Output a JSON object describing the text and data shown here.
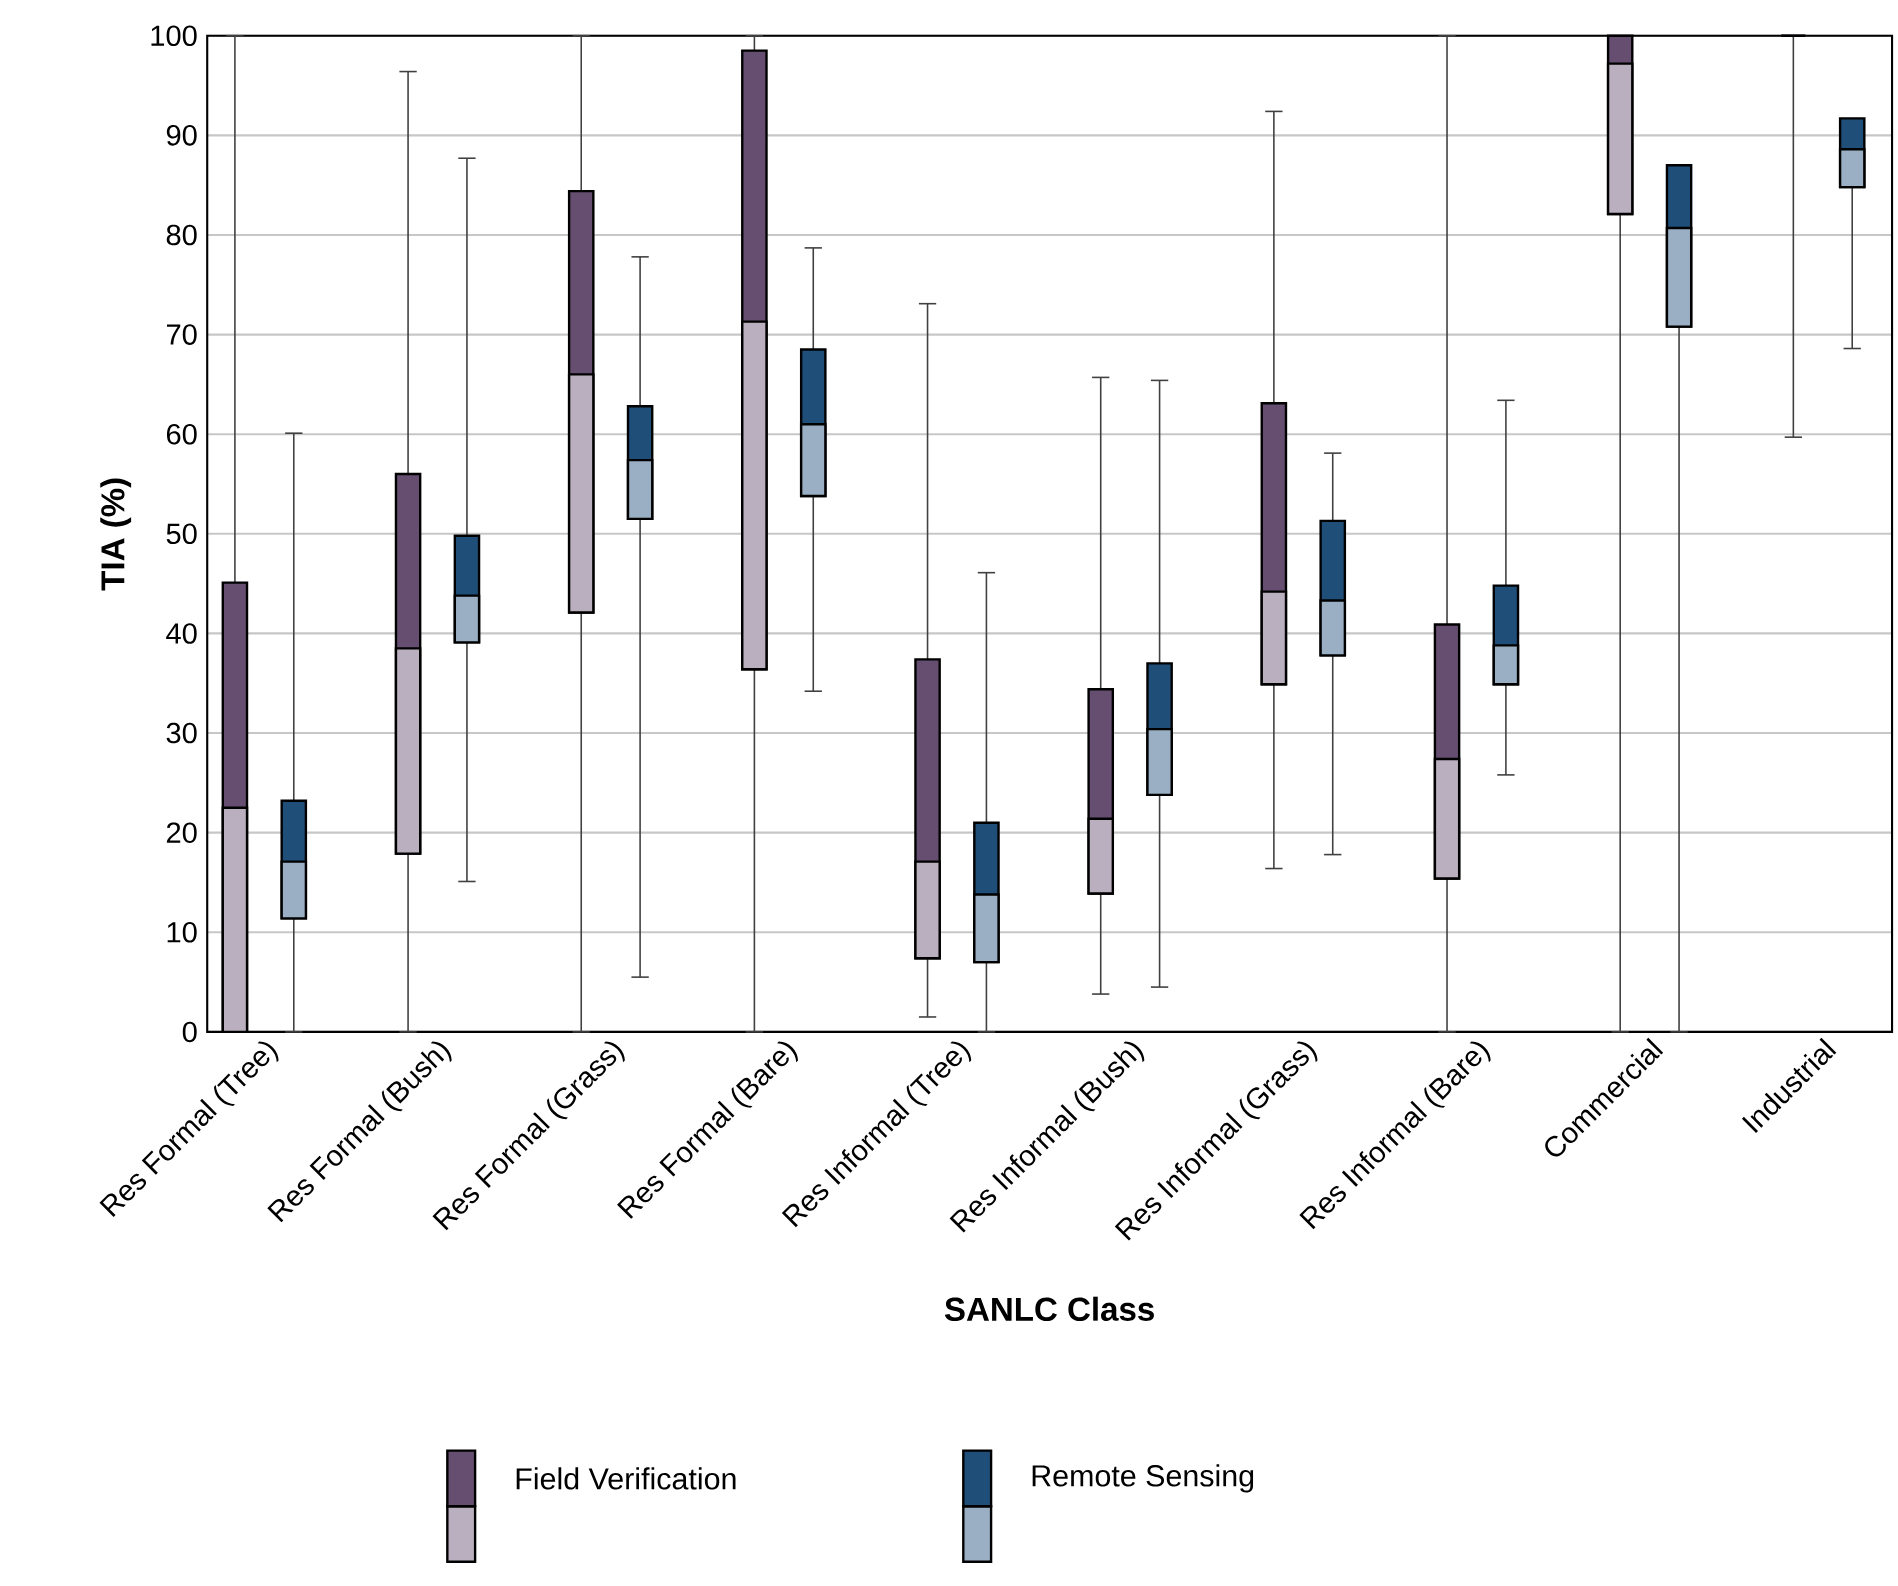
{
  "chart_data": {
    "type": "box",
    "xlabel": "SANLC Class",
    "ylabel": "TIA (%)",
    "categories": [
      "Res Formal (Tree)",
      "Res Formal (Bush)",
      "Res Formal (Grass)",
      "Res Formal (Bare)",
      "Res Informal (Tree)",
      "Res Informal (Bush)",
      "Res Informal (Grass)",
      "Res Informal (Bare)",
      "Commercial",
      "Industrial"
    ],
    "ylim": [
      0,
      100
    ],
    "yticks": [
      0,
      10,
      20,
      30,
      40,
      50,
      60,
      70,
      80,
      90,
      100
    ],
    "grid": "y",
    "legend": "bottom",
    "series": [
      {
        "name": "Field Verification",
        "color": "#654e6f",
        "boxes": [
          {
            "low": 0,
            "q1": 0,
            "median": 22.5,
            "q3": 45.1,
            "high": 100
          },
          {
            "low": 0,
            "q1": 17.9,
            "median": 38.5,
            "q3": 56.0,
            "high": 96.4
          },
          {
            "low": 0,
            "q1": 42.1,
            "median": 66.0,
            "q3": 84.4,
            "high": 100
          },
          {
            "low": 0,
            "q1": 36.4,
            "median": 71.3,
            "q3": 98.5,
            "high": 100
          },
          {
            "low": 1.5,
            "q1": 7.4,
            "median": 17.1,
            "q3": 37.4,
            "high": 73.1
          },
          {
            "low": 3.8,
            "q1": 13.9,
            "median": 21.4,
            "q3": 34.4,
            "high": 65.7
          },
          {
            "low": 16.4,
            "q1": 34.9,
            "median": 44.2,
            "q3": 63.1,
            "high": 92.4
          },
          {
            "low": 0,
            "q1": 15.4,
            "median": 27.4,
            "q3": 40.9,
            "high": 100
          },
          {
            "low": 0,
            "q1": 82.1,
            "median": 97.2,
            "q3": 100,
            "high": 100
          },
          {
            "low": 59.7,
            "q1": 100,
            "median": 100,
            "q3": 100,
            "high": 100
          }
        ]
      },
      {
        "name": "Remote Sensing",
        "color": "#1f4e79",
        "boxes": [
          {
            "low": 0,
            "q1": 11.4,
            "median": 17.1,
            "q3": 23.2,
            "high": 60.1
          },
          {
            "low": 15.1,
            "q1": 39.1,
            "median": 43.8,
            "q3": 49.8,
            "high": 87.7
          },
          {
            "low": 5.5,
            "q1": 51.5,
            "median": 57.4,
            "q3": 62.8,
            "high": 77.8
          },
          {
            "low": 34.2,
            "q1": 53.8,
            "median": 61.0,
            "q3": 68.5,
            "high": 78.7
          },
          {
            "low": 0,
            "q1": 7.0,
            "median": 13.8,
            "q3": 21.0,
            "high": 46.1
          },
          {
            "low": 4.5,
            "q1": 23.8,
            "median": 30.4,
            "q3": 37.0,
            "high": 65.4
          },
          {
            "low": 17.8,
            "q1": 37.8,
            "median": 43.3,
            "q3": 51.3,
            "high": 58.1
          },
          {
            "low": 25.8,
            "q1": 34.9,
            "median": 38.8,
            "q3": 44.8,
            "high": 63.4
          },
          {
            "low": 0,
            "q1": 70.8,
            "median": 80.7,
            "q3": 87.0,
            "high": 87.0
          },
          {
            "low": 68.6,
            "q1": 84.8,
            "median": 88.6,
            "q3": 91.7,
            "high": 91.7
          }
        ]
      }
    ]
  }
}
